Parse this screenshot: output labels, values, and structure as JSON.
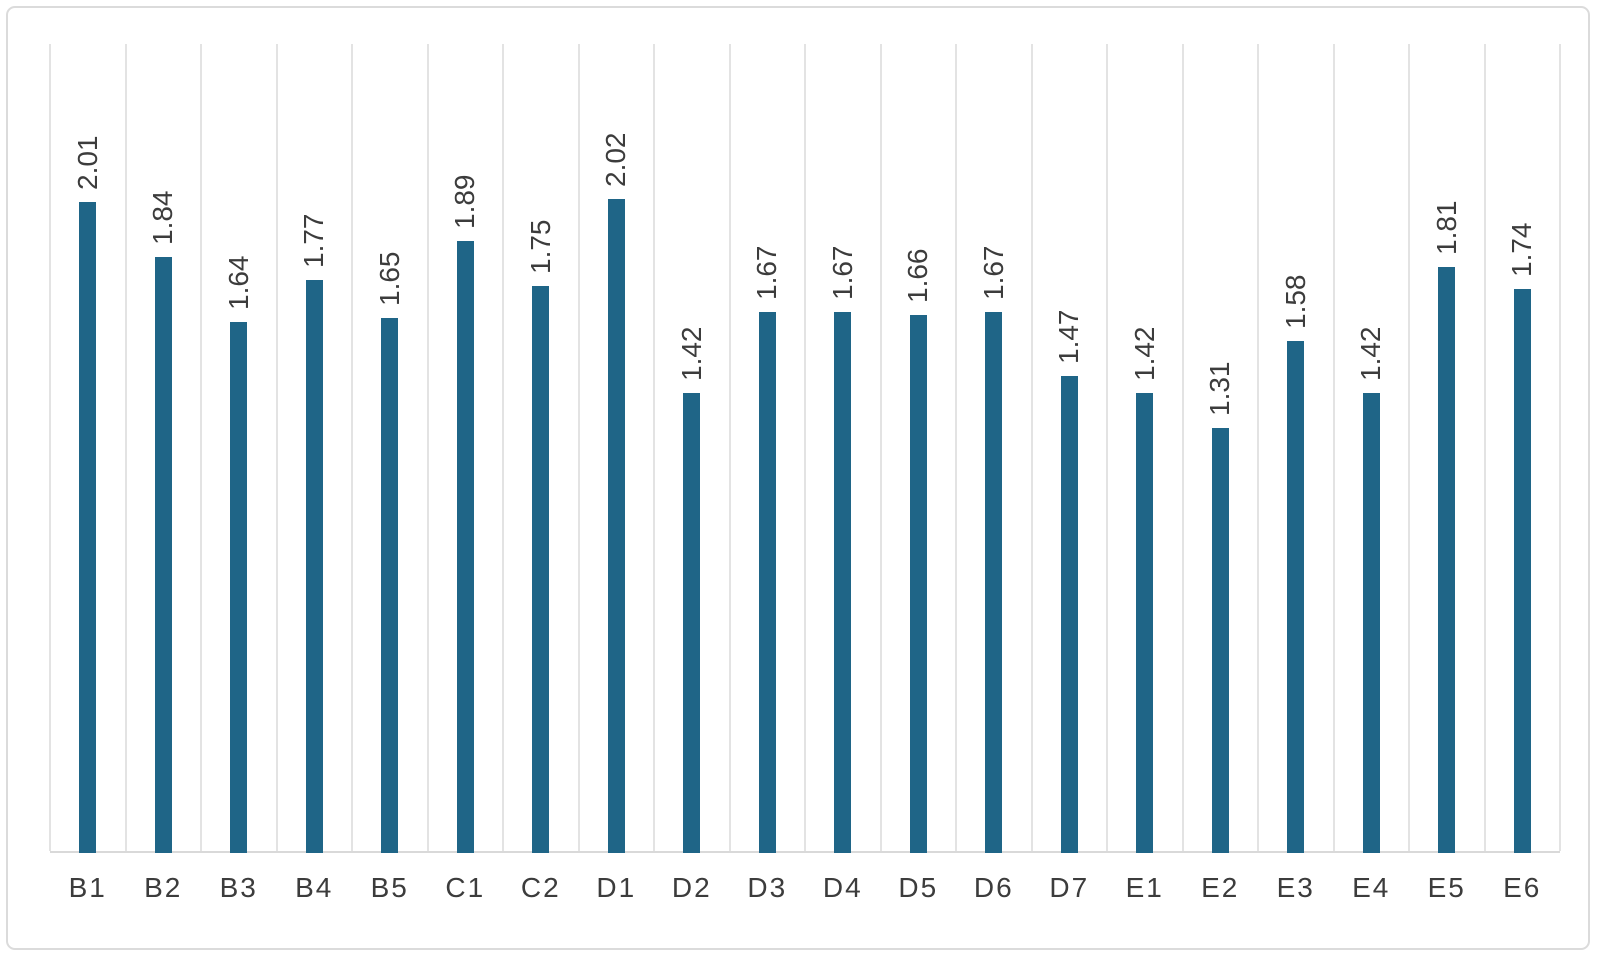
{
  "chart_data": {
    "type": "bar",
    "title": "",
    "xlabel": "",
    "ylabel": "",
    "categories": [
      "B1",
      "B2",
      "B3",
      "B4",
      "B5",
      "C1",
      "C2",
      "D1",
      "D2",
      "D3",
      "D4",
      "D5",
      "D6",
      "D7",
      "E1",
      "E2",
      "E3",
      "E4",
      "E5",
      "E6"
    ],
    "values": [
      2.01,
      1.84,
      1.64,
      1.77,
      1.65,
      1.89,
      1.75,
      2.02,
      1.42,
      1.67,
      1.67,
      1.66,
      1.67,
      1.47,
      1.42,
      1.31,
      1.58,
      1.42,
      1.81,
      1.74
    ],
    "value_labels": [
      "2.01",
      "1.84",
      "1.64",
      "1.77",
      "1.65",
      "1.89",
      "1.75",
      "2.02",
      "1.42",
      "1.67",
      "1.67",
      "1.66",
      "1.67",
      "1.47",
      "1.42",
      "1.31",
      "1.58",
      "1.42",
      "1.81",
      "1.74"
    ],
    "ylim": [
      0,
      2.5
    ],
    "grid": "vertical-only",
    "legend": "none",
    "data_labels": "rotated-90-above-bars",
    "colors": {
      "bar": "#1F6587",
      "gridline": "#E3E3E3",
      "axis_line": "#D9D9D9",
      "label_text": "#3C3C3C",
      "frame_border": "#DBDBDB",
      "background": "#FFFFFF"
    }
  }
}
